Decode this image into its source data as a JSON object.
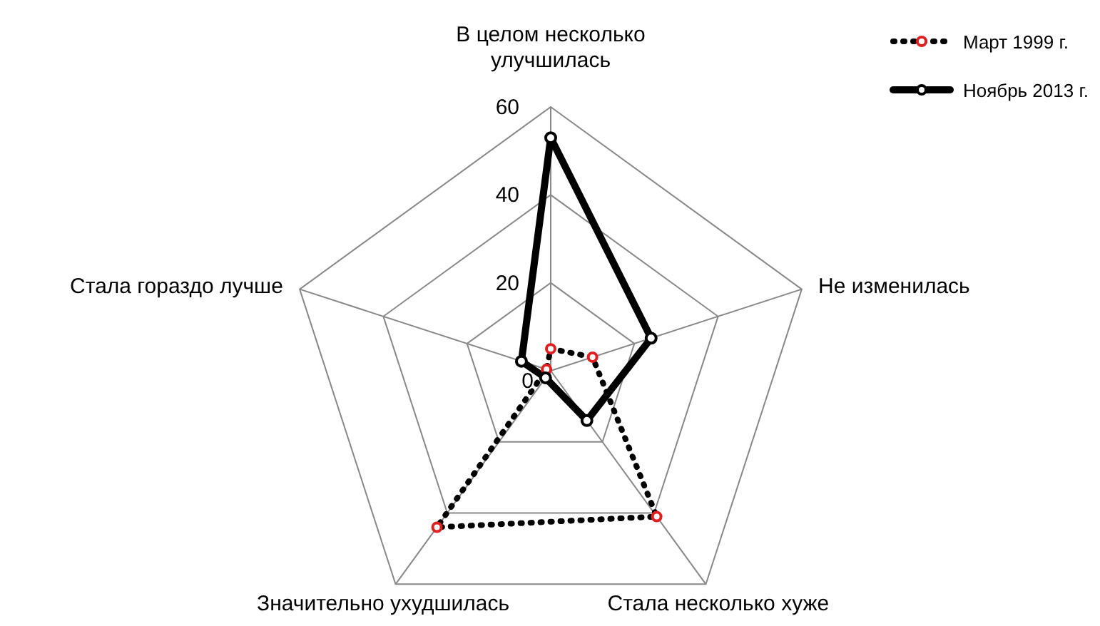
{
  "chart_data": {
    "type": "radar",
    "categories": [
      "В целом несколько улучшилась",
      "Не изменилась",
      "Стала несколько хуже",
      "Значительно ухудшилась",
      "Стала гораздо лучше"
    ],
    "series": [
      {
        "name": "Март 1999 г.",
        "color": "#000000",
        "line_style": "dotted",
        "values": [
          5,
          10,
          41,
          44,
          1
        ]
      },
      {
        "name": "Ноябрь 2013 г.",
        "color": "#000000",
        "line_style": "solid",
        "values": [
          53,
          24,
          14,
          2,
          7
        ]
      }
    ],
    "ylim": [
      0,
      60
    ],
    "yticks": [
      0,
      20,
      40,
      60
    ],
    "grid": true,
    "legend": "top right",
    "marker": "circle"
  }
}
